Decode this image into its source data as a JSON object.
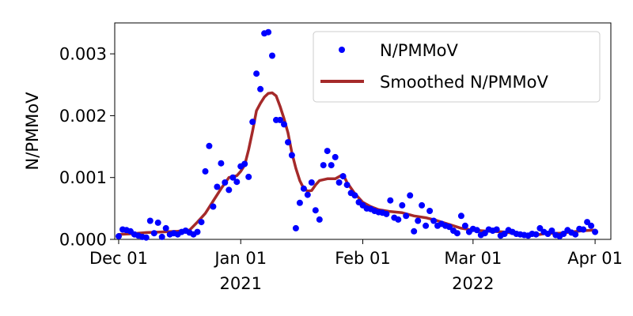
{
  "chart_data": {
    "type": "scatter",
    "ylabel": "N/PMMoV",
    "xlabel": "",
    "ylim": [
      0,
      0.0035
    ],
    "xlim": [
      "2021-11-30",
      "2022-04-05"
    ],
    "y_ticks": [
      {
        "value": 0.0,
        "label": "0.000"
      },
      {
        "value": 0.001,
        "label": "0.001"
      },
      {
        "value": 0.002,
        "label": "0.002"
      },
      {
        "value": 0.003,
        "label": "0.003"
      }
    ],
    "x_ticks": [
      {
        "date": "2021-12-01",
        "label": "Dec 01"
      },
      {
        "date": "2022-01-01",
        "label": "Jan 01"
      },
      {
        "date": "2022-02-01",
        "label": "Feb 01"
      },
      {
        "date": "2022-03-01",
        "label": "Mar 01"
      },
      {
        "date": "2022-04-01",
        "label": "Apr 01"
      }
    ],
    "x_year_labels": [
      {
        "date": "2022-01-01",
        "label": "2021"
      },
      {
        "date": "2022-03-01",
        "label": "2022"
      }
    ],
    "legend_position": "top-right",
    "grid": false,
    "series": [
      {
        "name": "N/PMMoV",
        "kind": "points",
        "color": "#0000ff",
        "points": [
          [
            "2021-12-01",
            5e-05
          ],
          [
            "2021-12-02",
            0.00016
          ],
          [
            "2021-12-03",
            0.00015
          ],
          [
            "2021-12-04",
            0.00013
          ],
          [
            "2021-12-05",
            8e-05
          ],
          [
            "2021-12-06",
            6e-05
          ],
          [
            "2021-12-07",
            4e-05
          ],
          [
            "2021-12-08",
            3e-05
          ],
          [
            "2021-12-09",
            0.0003
          ],
          [
            "2021-12-10",
            0.0001
          ],
          [
            "2021-12-11",
            0.00027
          ],
          [
            "2021-12-12",
            4e-05
          ],
          [
            "2021-12-13",
            0.00018
          ],
          [
            "2021-12-14",
            8e-05
          ],
          [
            "2021-12-15",
            0.0001
          ],
          [
            "2021-12-16",
            8e-05
          ],
          [
            "2021-12-17",
            0.00012
          ],
          [
            "2021-12-18",
            0.00014
          ],
          [
            "2021-12-19",
            0.00011
          ],
          [
            "2021-12-20",
            8e-05
          ],
          [
            "2021-12-21",
            0.00012
          ],
          [
            "2021-12-22",
            0.00028
          ],
          [
            "2021-12-23",
            0.0011
          ],
          [
            "2021-12-24",
            0.00151
          ],
          [
            "2021-12-25",
            0.00053
          ],
          [
            "2021-12-26",
            0.00085
          ],
          [
            "2021-12-27",
            0.00123
          ],
          [
            "2021-12-28",
            0.00092
          ],
          [
            "2021-12-29",
            0.0008
          ],
          [
            "2021-12-30",
            0.001
          ],
          [
            "2021-12-31",
            0.00093
          ],
          [
            "2022-01-01",
            0.00118
          ],
          [
            "2022-01-02",
            0.00122
          ],
          [
            "2022-01-03",
            0.00101
          ],
          [
            "2022-01-04",
            0.0019
          ],
          [
            "2022-01-05",
            0.00268
          ],
          [
            "2022-01-06",
            0.00243
          ],
          [
            "2022-01-07",
            0.00333
          ],
          [
            "2022-01-08",
            0.00335
          ],
          [
            "2022-01-09",
            0.00297
          ],
          [
            "2022-01-10",
            0.00193
          ],
          [
            "2022-01-11",
            0.00193
          ],
          [
            "2022-01-12",
            0.00186
          ],
          [
            "2022-01-13",
            0.00157
          ],
          [
            "2022-01-14",
            0.00136
          ],
          [
            "2022-01-15",
            0.00018
          ],
          [
            "2022-01-16",
            0.00059
          ],
          [
            "2022-01-17",
            0.00082
          ],
          [
            "2022-01-18",
            0.00072
          ],
          [
            "2022-01-19",
            0.00092
          ],
          [
            "2022-01-20",
            0.00047
          ],
          [
            "2022-01-21",
            0.00032
          ],
          [
            "2022-01-22",
            0.0012
          ],
          [
            "2022-01-23",
            0.00143
          ],
          [
            "2022-01-24",
            0.0012
          ],
          [
            "2022-01-25",
            0.00133
          ],
          [
            "2022-01-26",
            0.00092
          ],
          [
            "2022-01-27",
            0.00102
          ],
          [
            "2022-01-28",
            0.00088
          ],
          [
            "2022-01-29",
            0.00075
          ],
          [
            "2022-01-30",
            0.00071
          ],
          [
            "2022-01-31",
            0.0006
          ],
          [
            "2022-02-01",
            0.00055
          ],
          [
            "2022-02-02",
            0.0005
          ],
          [
            "2022-02-03",
            0.00049
          ],
          [
            "2022-02-04",
            0.00046
          ],
          [
            "2022-02-05",
            0.00044
          ],
          [
            "2022-02-06",
            0.00043
          ],
          [
            "2022-02-07",
            0.00041
          ],
          [
            "2022-02-08",
            0.00063
          ],
          [
            "2022-02-09",
            0.00035
          ],
          [
            "2022-02-10",
            0.00032
          ],
          [
            "2022-02-11",
            0.00055
          ],
          [
            "2022-02-12",
            0.00038
          ],
          [
            "2022-02-13",
            0.00071
          ],
          [
            "2022-02-14",
            0.00013
          ],
          [
            "2022-02-15",
            0.0003
          ],
          [
            "2022-02-16",
            0.00055
          ],
          [
            "2022-02-17",
            0.00022
          ],
          [
            "2022-02-18",
            0.00046
          ],
          [
            "2022-02-19",
            0.0003
          ],
          [
            "2022-02-20",
            0.00022
          ],
          [
            "2022-02-21",
            0.00025
          ],
          [
            "2022-02-22",
            0.00022
          ],
          [
            "2022-02-23",
            0.0002
          ],
          [
            "2022-02-24",
            0.00014
          ],
          [
            "2022-02-25",
            0.0001
          ],
          [
            "2022-02-26",
            0.00038
          ],
          [
            "2022-02-27",
            0.00022
          ],
          [
            "2022-02-28",
            0.00012
          ],
          [
            "2022-03-01",
            0.00017
          ],
          [
            "2022-03-02",
            0.00015
          ],
          [
            "2022-03-03",
            7e-05
          ],
          [
            "2022-03-04",
            0.0001
          ],
          [
            "2022-03-05",
            0.00016
          ],
          [
            "2022-03-06",
            0.00014
          ],
          [
            "2022-03-07",
            0.00016
          ],
          [
            "2022-03-08",
            6e-05
          ],
          [
            "2022-03-09",
            9e-05
          ],
          [
            "2022-03-10",
            0.00015
          ],
          [
            "2022-03-11",
            0.00012
          ],
          [
            "2022-03-12",
            9e-05
          ],
          [
            "2022-03-13",
            8e-05
          ],
          [
            "2022-03-14",
            7e-05
          ],
          [
            "2022-03-15",
            6e-05
          ],
          [
            "2022-03-16",
            9e-05
          ],
          [
            "2022-03-17",
            8e-05
          ],
          [
            "2022-03-18",
            0.00018
          ],
          [
            "2022-03-19",
            0.00012
          ],
          [
            "2022-03-20",
            9e-05
          ],
          [
            "2022-03-21",
            0.00014
          ],
          [
            "2022-03-22",
            7e-05
          ],
          [
            "2022-03-23",
            5e-05
          ],
          [
            "2022-03-24",
            9e-05
          ],
          [
            "2022-03-25",
            0.00015
          ],
          [
            "2022-03-26",
            0.00011
          ],
          [
            "2022-03-27",
            8e-05
          ],
          [
            "2022-03-28",
            0.00017
          ],
          [
            "2022-03-29",
            0.00016
          ],
          [
            "2022-03-30",
            0.00028
          ],
          [
            "2022-03-31",
            0.00022
          ],
          [
            "2022-04-01",
            0.00012
          ]
        ]
      },
      {
        "name": "Smoothed N/PMMoV",
        "kind": "line",
        "color": "#a52a2a",
        "points": [
          [
            "2021-12-01",
            8e-05
          ],
          [
            "2021-12-04",
            9e-05
          ],
          [
            "2021-12-08",
            0.00011
          ],
          [
            "2021-12-12",
            0.00012
          ],
          [
            "2021-12-16",
            0.00013
          ],
          [
            "2021-12-19",
            0.00015
          ],
          [
            "2021-12-21",
            0.00028
          ],
          [
            "2021-12-23",
            0.00042
          ],
          [
            "2021-12-25",
            0.00062
          ],
          [
            "2021-12-27",
            0.00082
          ],
          [
            "2021-12-29",
            0.001
          ],
          [
            "2021-12-31",
            0.00103
          ],
          [
            "2022-01-01",
            0.0011
          ],
          [
            "2022-01-02",
            0.0012
          ],
          [
            "2022-01-03",
            0.00145
          ],
          [
            "2022-01-04",
            0.00175
          ],
          [
            "2022-01-05",
            0.00208
          ],
          [
            "2022-01-06",
            0.0022
          ],
          [
            "2022-01-07",
            0.0023
          ],
          [
            "2022-01-08",
            0.00236
          ],
          [
            "2022-01-09",
            0.00237
          ],
          [
            "2022-01-10",
            0.00232
          ],
          [
            "2022-01-11",
            0.00215
          ],
          [
            "2022-01-12",
            0.00195
          ],
          [
            "2022-01-13",
            0.00172
          ],
          [
            "2022-01-14",
            0.0014
          ],
          [
            "2022-01-15",
            0.00115
          ],
          [
            "2022-01-16",
            0.00095
          ],
          [
            "2022-01-17",
            0.00082
          ],
          [
            "2022-01-18",
            0.00078
          ],
          [
            "2022-01-19",
            0.00079
          ],
          [
            "2022-01-20",
            0.00088
          ],
          [
            "2022-01-21",
            0.00095
          ],
          [
            "2022-01-23",
            0.00098
          ],
          [
            "2022-01-25",
            0.00098
          ],
          [
            "2022-01-27",
            0.00105
          ],
          [
            "2022-01-28",
            0.00092
          ],
          [
            "2022-01-30",
            0.00074
          ],
          [
            "2022-02-01",
            0.0006
          ],
          [
            "2022-02-03",
            0.00053
          ],
          [
            "2022-02-05",
            0.00048
          ],
          [
            "2022-02-08",
            0.00045
          ],
          [
            "2022-02-11",
            0.00043
          ],
          [
            "2022-02-14",
            0.00038
          ],
          [
            "2022-02-17",
            0.00035
          ],
          [
            "2022-02-20",
            0.0003
          ],
          [
            "2022-02-23",
            0.00024
          ],
          [
            "2022-02-26",
            0.00018
          ],
          [
            "2022-03-01",
            0.00015
          ],
          [
            "2022-03-05",
            0.00013
          ],
          [
            "2022-03-09",
            0.00012
          ],
          [
            "2022-03-12",
            9e-05
          ],
          [
            "2022-03-15",
            6e-05
          ],
          [
            "2022-03-17",
            7e-05
          ],
          [
            "2022-03-20",
            0.0001
          ],
          [
            "2022-03-23",
            0.0001
          ],
          [
            "2022-03-26",
            0.00012
          ],
          [
            "2022-03-29",
            0.00014
          ],
          [
            "2022-04-01",
            0.00015
          ]
        ]
      }
    ]
  }
}
